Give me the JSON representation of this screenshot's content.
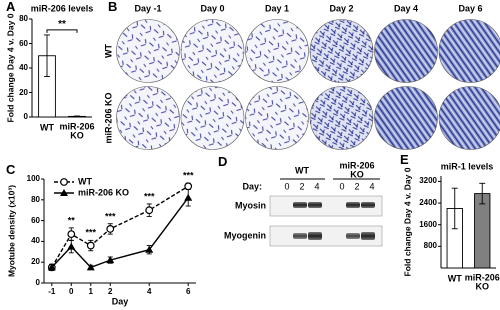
{
  "panel_labels": [
    "A",
    "B",
    "C",
    "D",
    "E"
  ],
  "chart_data": [
    {
      "type": "bar",
      "title": "miR-206 levels",
      "y_label": "Fold change Day 4 v. Day 0",
      "categories": [
        "WT",
        "miR-206 KO"
      ],
      "values": [
        50,
        0.5
      ],
      "errors": [
        17,
        0.3
      ],
      "colors": [
        "#ffffff",
        "#000000"
      ],
      "ylim": [
        0,
        80
      ],
      "yticks": [
        0,
        20,
        40,
        60,
        80
      ],
      "significance": "**"
    },
    {
      "type": "line",
      "y_label": "Myotube density (x10³)",
      "x_label": "Day",
      "x": [
        -1,
        0,
        1,
        2,
        4,
        6
      ],
      "xlim": [
        -1.4,
        6.4
      ],
      "xticks": [
        -1,
        0,
        1,
        2,
        4,
        6
      ],
      "ylim": [
        0,
        100
      ],
      "yticks": [
        0,
        20,
        40,
        60,
        80,
        100
      ],
      "legend": "top-left",
      "series": [
        {
          "name": "WT",
          "color": "#000000",
          "dashed": true,
          "marker": "circle",
          "values": [
            15,
            47,
            36,
            52,
            70,
            93
          ],
          "errors": [
            3,
            6,
            5,
            5,
            6,
            3
          ]
        },
        {
          "name": "miR-206 KO",
          "color": "#000000",
          "dashed": false,
          "marker": "triangle",
          "values": [
            15,
            35,
            15,
            22,
            32,
            82
          ],
          "errors": [
            3,
            6,
            2,
            3,
            4,
            8
          ]
        }
      ],
      "annotations": [
        {
          "x": 0,
          "text": "**"
        },
        {
          "x": 1,
          "text": "***"
        },
        {
          "x": 2,
          "text": "***"
        },
        {
          "x": 4,
          "text": "***"
        },
        {
          "x": 6,
          "text": "***"
        }
      ]
    },
    {
      "type": "bar",
      "title": "miR-1 levels",
      "y_label": "Fold change Day 4 v. Day 0",
      "categories": [
        "WT",
        "miR-206 KO"
      ],
      "values": [
        2200,
        2750
      ],
      "errors": [
        750,
        380
      ],
      "colors": [
        "#ffffff",
        "#808080"
      ],
      "ylim": [
        0,
        3400
      ],
      "yticks": [
        800,
        1600,
        2400,
        3200
      ]
    }
  ],
  "micrographs": {
    "columns": [
      "Day -1",
      "Day 0",
      "Day 1",
      "Day 2",
      "Day 4",
      "Day 6"
    ],
    "rows": [
      "WT",
      "miR-206 KO"
    ]
  },
  "western_blot": {
    "day_label": "Day:",
    "groups": [
      {
        "name": "WT",
        "days": [
          0,
          2,
          4
        ]
      },
      {
        "name": "miR-206 KO",
        "days": [
          0,
          2,
          4
        ]
      }
    ],
    "proteins": [
      "Myosin",
      "Myogenin"
    ]
  }
}
